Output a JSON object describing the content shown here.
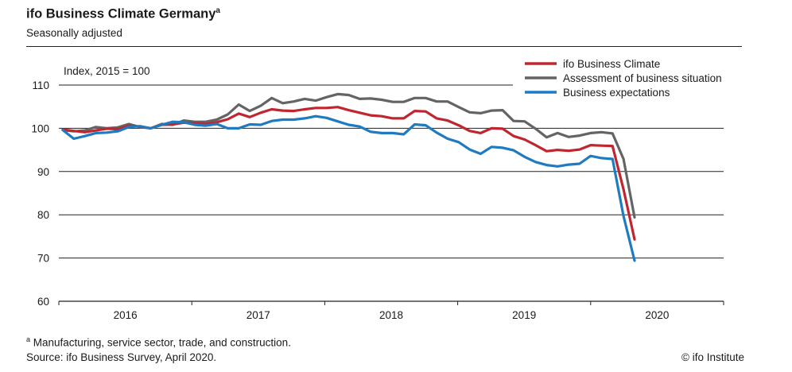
{
  "chart_data": {
    "type": "line",
    "title": "ifo Business Climate Germany",
    "title_marker": "a",
    "subtitle": "Seasonally adjusted",
    "ylabel": "Index, 2015 = 100",
    "ylim": [
      60,
      110
    ],
    "yticks": [
      "60",
      "70",
      "80",
      "90",
      "100",
      "110"
    ],
    "x_start": 2015.5,
    "x_end": 2020.5,
    "x_tick_labels": [
      "2016",
      "2017",
      "2018",
      "2019",
      "2020"
    ],
    "x_tick_positions": [
      2016,
      2017,
      2018,
      2019,
      2020
    ],
    "legend_position": "top-right",
    "series": [
      {
        "name": "ifo Business Climate",
        "color": "#c0262f",
        "values": [
          99.7,
          99.4,
          99.1,
          99.5,
          99.9,
          99.8,
          100.6,
          100.4,
          100.0,
          100.8,
          100.9,
          101.3,
          101.2,
          101.0,
          101.4,
          102.1,
          103.4,
          102.6,
          103.6,
          104.4,
          104.1,
          104.0,
          104.4,
          104.7,
          104.7,
          104.9,
          104.2,
          103.6,
          103.0,
          102.8,
          102.3,
          102.3,
          104.0,
          103.9,
          102.3,
          101.8,
          100.7,
          99.4,
          98.9,
          100.0,
          99.9,
          98.2,
          97.4,
          96.1,
          94.7,
          95.0,
          94.8,
          95.1,
          96.1,
          96.0,
          95.9,
          85.9,
          74.3
        ]
      },
      {
        "name": "Assessment of business situation",
        "color": "#646464",
        "values": [
          99.6,
          99.3,
          99.5,
          100.3,
          100.0,
          100.2,
          101.0,
          100.3,
          100.0,
          101.0,
          100.8,
          101.8,
          101.5,
          101.5,
          102.0,
          103.2,
          105.5,
          104.0,
          105.2,
          107.0,
          105.8,
          106.2,
          106.8,
          106.4,
          107.2,
          107.9,
          107.7,
          106.8,
          106.9,
          106.6,
          106.1,
          106.1,
          107.0,
          107.0,
          106.2,
          106.2,
          104.9,
          103.7,
          103.5,
          104.1,
          104.2,
          101.7,
          101.6,
          99.9,
          97.9,
          98.9,
          98.0,
          98.3,
          98.9,
          99.1,
          98.8,
          92.9,
          79.4
        ]
      },
      {
        "name": "Business expectations",
        "color": "#1f7bc1",
        "values": [
          99.6,
          97.6,
          98.2,
          98.9,
          99.0,
          99.3,
          100.3,
          100.5,
          100.0,
          100.8,
          101.5,
          101.4,
          100.8,
          100.6,
          101.0,
          100.0,
          100.0,
          100.9,
          100.8,
          101.7,
          102.0,
          102.0,
          102.3,
          102.8,
          102.4,
          101.6,
          100.8,
          100.4,
          99.2,
          98.9,
          98.9,
          98.6,
          100.9,
          100.7,
          99.0,
          97.6,
          96.8,
          95.1,
          94.1,
          95.7,
          95.5,
          94.9,
          93.4,
          92.2,
          91.5,
          91.2,
          91.6,
          91.8,
          93.6,
          93.1,
          92.9,
          79.7,
          69.4
        ]
      }
    ]
  },
  "footnote": {
    "marker": "a",
    "text": "Manufacturing, service sector, trade, and construction."
  },
  "source": "Source: ifo Business Survey, April 2020.",
  "credit": "© ifo Institute"
}
